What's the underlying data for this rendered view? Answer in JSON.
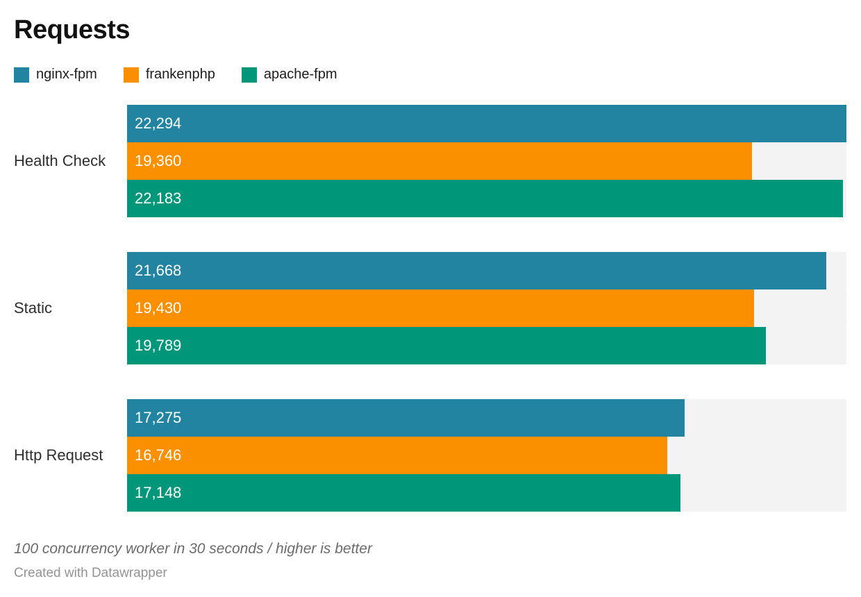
{
  "header": {
    "title": "Requests"
  },
  "chart_data": {
    "type": "bar",
    "orientation": "horizontal",
    "title": "Requests",
    "categories": [
      "Health Check",
      "Static",
      "Http Request"
    ],
    "series": [
      {
        "name": "nginx-fpm",
        "color": "#2284a1",
        "values": [
          22294,
          21668,
          17275
        ]
      },
      {
        "name": "frankenphp",
        "color": "#fa9000",
        "values": [
          19360,
          19430,
          16746
        ]
      },
      {
        "name": "apache-fpm",
        "color": "#00967a",
        "values": [
          22183,
          19789,
          17148
        ]
      }
    ],
    "value_labels": [
      [
        "22,294",
        "21,668",
        "17,275"
      ],
      [
        "19,360",
        "19,430",
        "16,746"
      ],
      [
        "22,183",
        "19,789",
        "17,148"
      ]
    ],
    "xlim": [
      0,
      22294
    ],
    "grid": false,
    "legend_position": "top",
    "bar_track_color": "#f3f3f3",
    "value_label_color": "#ffffff"
  },
  "footer": {
    "footnote": "100 concurrency worker in 30 seconds / higher is better",
    "attribution": "Created with Datawrapper"
  }
}
